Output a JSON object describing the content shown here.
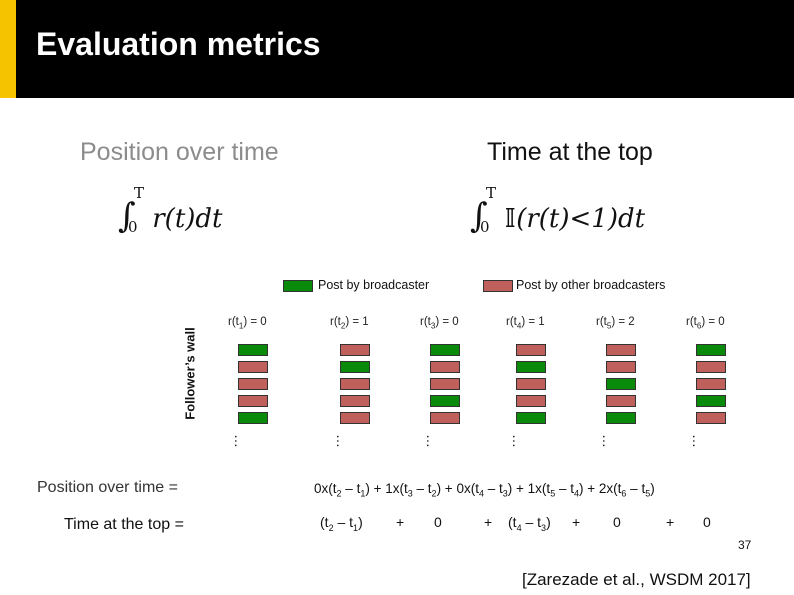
{
  "header": {
    "title": "Evaluation metrics"
  },
  "sections": {
    "left_heading": "Position over time",
    "right_heading": "Time at the top"
  },
  "legend": {
    "broadcaster": "Post by broadcaster",
    "others": "Post by other broadcasters"
  },
  "wall_label": "Follower’s wall",
  "columns": [
    {
      "r": "r(t",
      "sub": "1",
      "val": ") = 0",
      "posts": [
        "g",
        "r",
        "r",
        "r",
        "g"
      ]
    },
    {
      "r": "r(t",
      "sub": "2",
      "val": ") = 1",
      "posts": [
        "r",
        "g",
        "r",
        "r",
        "r"
      ]
    },
    {
      "r": "r(t",
      "sub": "3",
      "val": ") = 0",
      "posts": [
        "g",
        "r",
        "r",
        "g",
        "r"
      ]
    },
    {
      "r": "r(t",
      "sub": "4",
      "val": ") = 1",
      "posts": [
        "r",
        "g",
        "r",
        "r",
        "g"
      ]
    },
    {
      "r": "r(t",
      "sub": "5",
      "val": ") = 2",
      "posts": [
        "r",
        "r",
        "g",
        "r",
        "g"
      ]
    },
    {
      "r": "r(t",
      "sub": "6",
      "val": ") = 0",
      "posts": [
        "g",
        "r",
        "r",
        "g",
        "r"
      ]
    }
  ],
  "dots": "…",
  "rows": {
    "position_label": "Position over time =",
    "time_label": "Time at the top =",
    "position_expr": "0x(t2 – t1) + 1x(t3 – t2) + 0x(t4 – t3) + 1x(t5 – t4) + 2x(t6 – t5)",
    "time_terms": [
      "(t2 – t1)",
      "+",
      "0",
      "+",
      "(t4 – t3)",
      "+",
      "0",
      "+",
      "0"
    ]
  },
  "page_number": "37",
  "citation": "[Zarezade et al., WSDM 2017]",
  "colors": {
    "broadcaster": "#0a8a0a",
    "others": "#c0605c",
    "accent": "#f6c300"
  }
}
